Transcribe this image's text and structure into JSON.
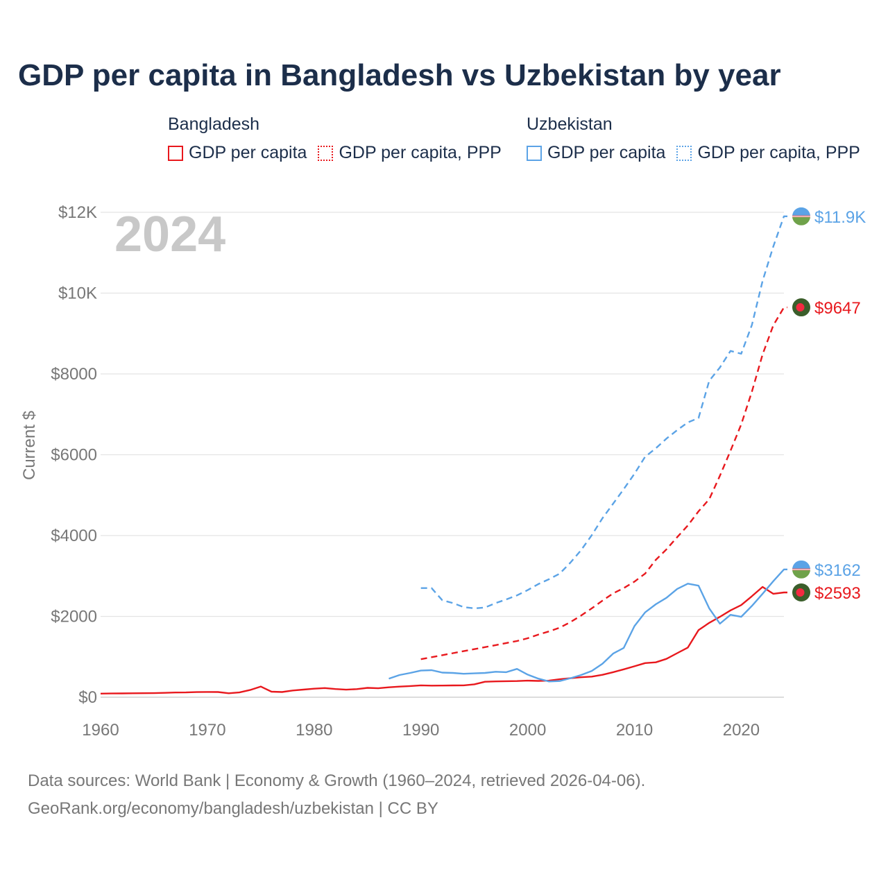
{
  "title": "GDP per capita in Bangladesh vs Uzbekistan by year",
  "legend": {
    "groups": [
      {
        "name": "Bangladesh",
        "items": [
          {
            "label": "GDP per capita",
            "color": "#e8181d",
            "style": "solid"
          },
          {
            "label": "GDP per capita, PPP",
            "color": "#e8181d",
            "style": "dotted"
          }
        ]
      },
      {
        "name": "Uzbekistan",
        "items": [
          {
            "label": "GDP per capita",
            "color": "#5ba3e6",
            "style": "solid"
          },
          {
            "label": "GDP per capita, PPP",
            "color": "#5ba3e6",
            "style": "dotted"
          }
        ]
      }
    ]
  },
  "source": {
    "line1": "Data sources: World Bank | Economy & Growth (1960–2024, retrieved 2026-04-06).",
    "line2": "GeoRank.org/economy/bangladesh/uzbekistan | CC BY"
  },
  "chart_data": {
    "type": "line",
    "title": "GDP per capita in Bangladesh vs Uzbekistan by year",
    "year_label": "2024",
    "ylabel": "Current $",
    "xlabel": "",
    "xlim": [
      1960,
      2024
    ],
    "ylim": [
      0,
      12000
    ],
    "grid": true,
    "x_ticks": [
      1960,
      1970,
      1980,
      1990,
      2000,
      2010,
      2020
    ],
    "x_tick_labels": [
      "1960",
      "1970",
      "1980",
      "1990",
      "2000",
      "2010",
      "2020"
    ],
    "y_ticks": [
      0,
      2000,
      4000,
      6000,
      8000,
      10000,
      12000
    ],
    "y_tick_labels": [
      "$0",
      "$2000",
      "$4000",
      "$6000",
      "$8000",
      "$10K",
      "$12K"
    ],
    "series": [
      {
        "name": "Bangladesh GDP per capita",
        "country": "Bangladesh",
        "color": "#e8181d",
        "dash": "solid",
        "end_label": "$2593",
        "x": [
          1960,
          1961,
          1962,
          1963,
          1964,
          1965,
          1966,
          1967,
          1968,
          1969,
          1970,
          1971,
          1972,
          1973,
          1974,
          1975,
          1976,
          1977,
          1978,
          1979,
          1980,
          1981,
          1982,
          1983,
          1984,
          1985,
          1986,
          1987,
          1988,
          1989,
          1990,
          1991,
          1992,
          1993,
          1994,
          1995,
          1996,
          1997,
          1998,
          1999,
          2000,
          2001,
          2002,
          2003,
          2004,
          2005,
          2006,
          2007,
          2008,
          2009,
          2010,
          2011,
          2012,
          2013,
          2014,
          2015,
          2016,
          2017,
          2018,
          2019,
          2020,
          2021,
          2022,
          2023,
          2024
        ],
        "values": [
          89,
          92,
          95,
          97,
          99,
          102,
          108,
          117,
          119,
          127,
          130,
          128,
          97,
          119,
          178,
          265,
          138,
          128,
          166,
          189,
          211,
          227,
          202,
          187,
          201,
          231,
          221,
          246,
          262,
          276,
          294,
          287,
          288,
          292,
          293,
          320,
          382,
          392,
          396,
          400,
          410,
          404,
          410,
          445,
          470,
          495,
          510,
          555,
          620,
          690,
          766,
          844,
          864,
          950,
          1090,
          1230,
          1660,
          1840,
          1990,
          2150,
          2280,
          2500,
          2730,
          2560,
          2593
        ]
      },
      {
        "name": "Bangladesh GDP per capita, PPP",
        "country": "Bangladesh",
        "color": "#e8181d",
        "dash": "dashed",
        "end_label": "$9647",
        "x": [
          1990,
          1991,
          1992,
          1993,
          1994,
          1995,
          1996,
          1997,
          1998,
          1999,
          2000,
          2001,
          2002,
          2003,
          2004,
          2005,
          2006,
          2007,
          2008,
          2009,
          2010,
          2011,
          2012,
          2013,
          2014,
          2015,
          2016,
          2017,
          2018,
          2019,
          2020,
          2021,
          2022,
          2023,
          2024
        ],
        "values": [
          940,
          990,
          1040,
          1090,
          1140,
          1190,
          1240,
          1290,
          1340,
          1390,
          1460,
          1550,
          1630,
          1720,
          1860,
          2020,
          2200,
          2390,
          2570,
          2700,
          2860,
          3060,
          3400,
          3660,
          3960,
          4250,
          4600,
          4900,
          5480,
          6100,
          6750,
          7560,
          8480,
          9200,
          9647
        ]
      },
      {
        "name": "Uzbekistan GDP per capita",
        "country": "Uzbekistan",
        "color": "#5ba3e6",
        "dash": "solid",
        "end_label": "$3162",
        "x": [
          1987,
          1988,
          1989,
          1990,
          1991,
          1992,
          1993,
          1994,
          1995,
          1996,
          1997,
          1998,
          1999,
          2000,
          2001,
          2002,
          2003,
          2004,
          2005,
          2006,
          2007,
          2008,
          2009,
          2010,
          2011,
          2012,
          2013,
          2014,
          2015,
          2016,
          2017,
          2018,
          2019,
          2020,
          2021,
          2022,
          2023,
          2024
        ],
        "values": [
          460,
          550,
          600,
          660,
          670,
          610,
          600,
          580,
          590,
          600,
          630,
          620,
          700,
          560,
          460,
          390,
          400,
          470,
          550,
          650,
          830,
          1080,
          1220,
          1760,
          2100,
          2300,
          2460,
          2680,
          2810,
          2760,
          2200,
          1820,
          2040,
          1990,
          2260,
          2560,
          2870,
          3162
        ]
      },
      {
        "name": "Uzbekistan GDP per capita, PPP",
        "country": "Uzbekistan",
        "color": "#5ba3e6",
        "dash": "dashed",
        "end_label": "$11.9K",
        "x": [
          1990,
          1991,
          1992,
          1993,
          1994,
          1995,
          1996,
          1997,
          1998,
          1999,
          2000,
          2001,
          2002,
          2003,
          2004,
          2005,
          2006,
          2007,
          2008,
          2009,
          2010,
          2011,
          2012,
          2013,
          2014,
          2015,
          2016,
          2017,
          2018,
          2019,
          2020,
          2021,
          2022,
          2023,
          2024
        ],
        "values": [
          2700,
          2700,
          2400,
          2330,
          2230,
          2200,
          2220,
          2330,
          2420,
          2520,
          2650,
          2800,
          2920,
          3060,
          3330,
          3640,
          4010,
          4430,
          4790,
          5150,
          5530,
          5950,
          6160,
          6400,
          6610,
          6800,
          6910,
          7830,
          8160,
          8570,
          8500,
          9210,
          10300,
          11150,
          11900
        ]
      }
    ]
  }
}
